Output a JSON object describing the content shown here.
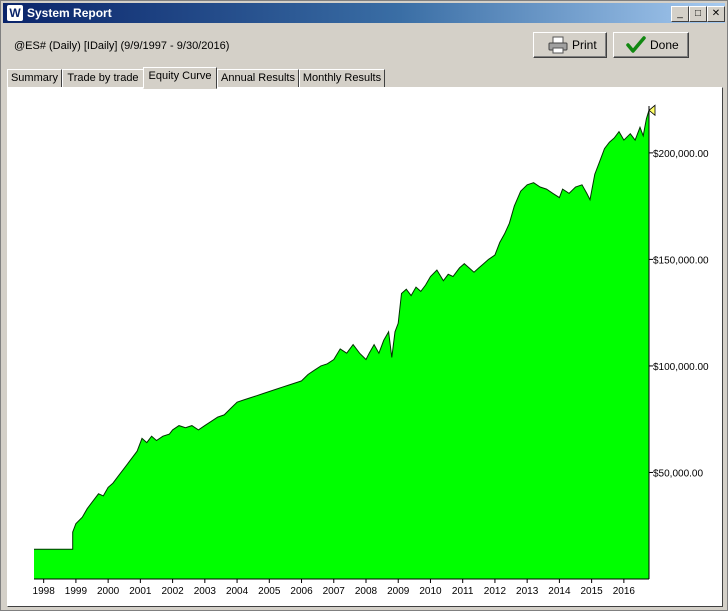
{
  "window": {
    "title": "System Report",
    "app_icon": "W",
    "controls": {
      "minimize": "_",
      "maximize": "□",
      "close": "✕"
    }
  },
  "report": {
    "subtitle": "@ES# (Daily) [IDaily]  (9/9/1997 - 9/30/2016)"
  },
  "buttons": {
    "print": "Print",
    "done": "Done"
  },
  "tabs": [
    {
      "label": "Summary"
    },
    {
      "label": "Trade by trade"
    },
    {
      "label": "Equity Curve"
    },
    {
      "label": "Annual Results"
    },
    {
      "label": "Monthly Results"
    }
  ],
  "active_tab": "Equity Curve",
  "colors": {
    "fill": "#00ff00",
    "line": "#003300",
    "marker": "#ffff66"
  },
  "chart_data": {
    "type": "area",
    "title": "",
    "xlabel": "",
    "ylabel": "",
    "x_ticks": [
      "1998",
      "1999",
      "2000",
      "2001",
      "2002",
      "2003",
      "2004",
      "2005",
      "2006",
      "2007",
      "2008",
      "2009",
      "2010",
      "2011",
      "2012",
      "2013",
      "2014",
      "2015",
      "2016"
    ],
    "y_ticks": [
      "$50,000.00",
      "$100,000.00",
      "$150,000.00",
      "$200,000.00"
    ],
    "y_tick_values": [
      50000,
      100000,
      150000,
      200000
    ],
    "xlim": [
      1997.7,
      2016.78
    ],
    "ylim": [
      0,
      222000
    ],
    "grid": false,
    "series": [
      {
        "values": [
          [
            1997.7,
            14000
          ],
          [
            1998.9,
            14000
          ],
          [
            1998.9,
            22000
          ],
          [
            1999.0,
            26000
          ],
          [
            1999.2,
            29000
          ],
          [
            1999.35,
            33000
          ],
          [
            1999.5,
            36000
          ],
          [
            1999.7,
            40000
          ],
          [
            1999.85,
            39000
          ],
          [
            2000.0,
            43000
          ],
          [
            2000.15,
            45000
          ],
          [
            2000.3,
            48000
          ],
          [
            2000.5,
            52000
          ],
          [
            2000.7,
            56000
          ],
          [
            2000.9,
            60000
          ],
          [
            2001.05,
            66000
          ],
          [
            2001.2,
            64000
          ],
          [
            2001.35,
            67000
          ],
          [
            2001.5,
            65000
          ],
          [
            2001.7,
            67000
          ],
          [
            2001.9,
            68000
          ],
          [
            2002.0,
            70000
          ],
          [
            2002.2,
            72000
          ],
          [
            2002.4,
            71000
          ],
          [
            2002.6,
            72000
          ],
          [
            2002.8,
            70000
          ],
          [
            2003.0,
            72000
          ],
          [
            2003.2,
            74000
          ],
          [
            2003.4,
            76000
          ],
          [
            2003.6,
            77000
          ],
          [
            2003.8,
            80000
          ],
          [
            2004.0,
            83000
          ],
          [
            2004.2,
            84000
          ],
          [
            2004.4,
            85000
          ],
          [
            2004.6,
            86000
          ],
          [
            2004.8,
            87000
          ],
          [
            2005.0,
            88000
          ],
          [
            2005.2,
            89000
          ],
          [
            2005.4,
            90000
          ],
          [
            2005.6,
            91000
          ],
          [
            2005.8,
            92000
          ],
          [
            2006.0,
            93000
          ],
          [
            2006.2,
            96000
          ],
          [
            2006.4,
            98000
          ],
          [
            2006.6,
            100000
          ],
          [
            2006.8,
            101000
          ],
          [
            2007.0,
            103000
          ],
          [
            2007.2,
            108000
          ],
          [
            2007.4,
            106000
          ],
          [
            2007.6,
            110000
          ],
          [
            2007.8,
            106000
          ],
          [
            2008.0,
            103000
          ],
          [
            2008.1,
            106000
          ],
          [
            2008.25,
            110000
          ],
          [
            2008.4,
            106000
          ],
          [
            2008.55,
            112000
          ],
          [
            2008.7,
            116000
          ],
          [
            2008.8,
            104000
          ],
          [
            2008.9,
            116000
          ],
          [
            2009.0,
            120000
          ],
          [
            2009.1,
            134000
          ],
          [
            2009.25,
            136000
          ],
          [
            2009.4,
            133000
          ],
          [
            2009.55,
            137000
          ],
          [
            2009.7,
            135000
          ],
          [
            2009.85,
            138000
          ],
          [
            2010.0,
            142000
          ],
          [
            2010.2,
            145000
          ],
          [
            2010.4,
            140000
          ],
          [
            2010.55,
            143000
          ],
          [
            2010.7,
            142000
          ],
          [
            2010.9,
            146000
          ],
          [
            2011.05,
            148000
          ],
          [
            2011.2,
            146000
          ],
          [
            2011.35,
            144000
          ],
          [
            2011.5,
            146000
          ],
          [
            2011.65,
            148000
          ],
          [
            2011.8,
            150000
          ],
          [
            2012.0,
            152000
          ],
          [
            2012.15,
            158000
          ],
          [
            2012.3,
            162000
          ],
          [
            2012.45,
            167000
          ],
          [
            2012.6,
            175000
          ],
          [
            2012.8,
            182000
          ],
          [
            2013.0,
            185000
          ],
          [
            2013.2,
            186000
          ],
          [
            2013.4,
            184000
          ],
          [
            2013.6,
            183000
          ],
          [
            2013.8,
            181000
          ],
          [
            2014.0,
            179000
          ],
          [
            2014.1,
            183000
          ],
          [
            2014.3,
            181000
          ],
          [
            2014.5,
            184000
          ],
          [
            2014.7,
            185000
          ],
          [
            2014.85,
            181000
          ],
          [
            2014.95,
            178000
          ],
          [
            2015.1,
            190000
          ],
          [
            2015.25,
            196000
          ],
          [
            2015.4,
            202000
          ],
          [
            2015.55,
            205000
          ],
          [
            2015.7,
            207000
          ],
          [
            2015.85,
            210000
          ],
          [
            2016.0,
            206000
          ],
          [
            2016.2,
            209000
          ],
          [
            2016.35,
            206000
          ],
          [
            2016.5,
            212000
          ],
          [
            2016.6,
            208000
          ],
          [
            2016.7,
            216000
          ],
          [
            2016.78,
            220000
          ]
        ]
      }
    ]
  }
}
